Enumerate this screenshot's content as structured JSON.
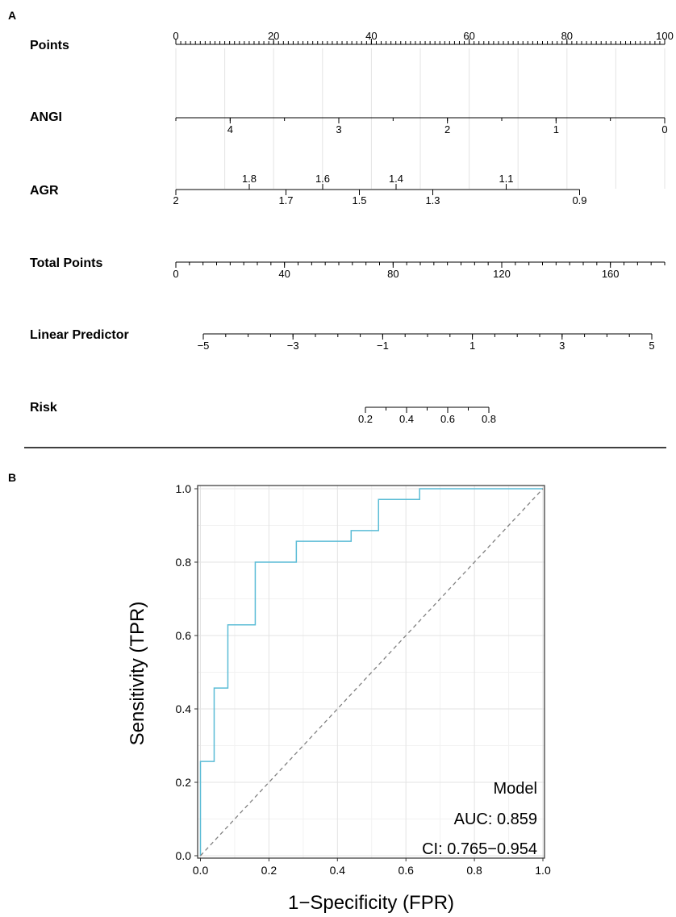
{
  "panel_a": {
    "label": "A",
    "rows": [
      {
        "label": "Points",
        "ticks": [
          {
            "v": 0,
            "t": "0"
          },
          {
            "v": 20,
            "t": "20"
          },
          {
            "v": 40,
            "t": "40"
          },
          {
            "v": 60,
            "t": "60"
          },
          {
            "v": 80,
            "t": "80"
          },
          {
            "v": 100,
            "t": "100"
          }
        ]
      },
      {
        "label": "ANGI",
        "ticks": [
          {
            "v": 4,
            "t": "4"
          },
          {
            "v": 3,
            "t": "3"
          },
          {
            "v": 2,
            "t": "2"
          },
          {
            "v": 1,
            "t": "1"
          },
          {
            "v": 0,
            "t": "0"
          }
        ]
      },
      {
        "label": "AGR",
        "ticks_above": [
          {
            "v": 1.8,
            "t": "1.8"
          },
          {
            "v": 1.6,
            "t": "1.6"
          },
          {
            "v": 1.4,
            "t": "1.4"
          },
          {
            "v": 1.1,
            "t": "1.1"
          }
        ],
        "ticks_below": [
          {
            "v": 2,
            "t": "2"
          },
          {
            "v": 1.7,
            "t": "1.7"
          },
          {
            "v": 1.5,
            "t": "1.5"
          },
          {
            "v": 1.3,
            "t": "1.3"
          },
          {
            "v": 0.9,
            "t": "0.9"
          }
        ]
      },
      {
        "label": "Total Points",
        "ticks": [
          {
            "v": 0,
            "t": "0"
          },
          {
            "v": 40,
            "t": "40"
          },
          {
            "v": 80,
            "t": "80"
          },
          {
            "v": 120,
            "t": "120"
          },
          {
            "v": 160,
            "t": "160"
          }
        ]
      },
      {
        "label": "Linear Predictor",
        "ticks": [
          {
            "v": -5,
            "t": "−5"
          },
          {
            "v": -3,
            "t": "−3"
          },
          {
            "v": -1,
            "t": "−1"
          },
          {
            "v": 1,
            "t": "1"
          },
          {
            "v": 3,
            "t": "3"
          },
          {
            "v": 5,
            "t": "5"
          }
        ]
      },
      {
        "label": "Risk",
        "ticks": [
          {
            "v": 0.2,
            "t": "0.2"
          },
          {
            "v": 0.4,
            "t": "0.4"
          },
          {
            "v": 0.6,
            "t": "0.6"
          },
          {
            "v": 0.8,
            "t": "0.8"
          }
        ]
      }
    ]
  },
  "panel_b": {
    "label": "B",
    "legend": {
      "line1": "Model",
      "line2": "AUC: 0.859",
      "line3": "CI: 0.765−0.954"
    }
  },
  "chart_data": {
    "type": "line",
    "xlabel": "1−Specificity (FPR)",
    "ylabel": "Sensitivity (TPR)",
    "xlim": [
      0,
      1
    ],
    "ylim": [
      0,
      1
    ],
    "xticks": [
      "0.0",
      "0.2",
      "0.4",
      "0.6",
      "0.8",
      "1.0"
    ],
    "yticks": [
      "0.0",
      "0.2",
      "0.4",
      "0.6",
      "0.8",
      "1.0"
    ],
    "grid": true,
    "series": [
      {
        "color": "#5bbcd6",
        "x": [
          0.0,
          0.0,
          0.04,
          0.04,
          0.08,
          0.08,
          0.16,
          0.16,
          0.28,
          0.28,
          0.44,
          0.44,
          0.52,
          0.52,
          0.64,
          0.64,
          1.0
        ],
        "y": [
          0.0,
          0.257,
          0.257,
          0.457,
          0.457,
          0.629,
          0.629,
          0.8,
          0.8,
          0.857,
          0.857,
          0.886,
          0.886,
          0.971,
          0.971,
          1.0,
          1.0
        ]
      },
      {
        "color": "#808080",
        "dashed": true,
        "x": [
          0,
          1
        ],
        "y": [
          0,
          1
        ]
      }
    ],
    "legend_position": "bottom-right"
  }
}
